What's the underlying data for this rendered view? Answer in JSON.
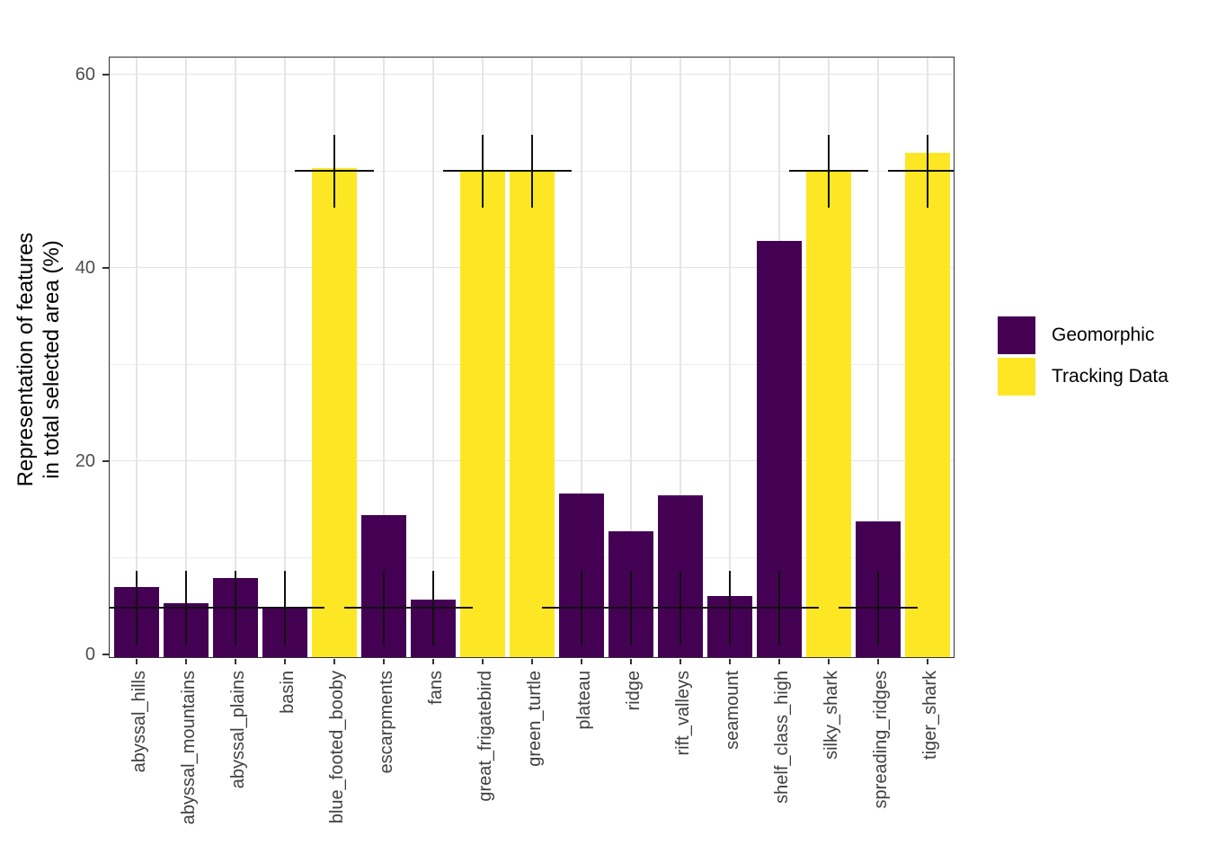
{
  "figure": {
    "y_axis_title_line1": "Representation of features",
    "y_axis_title_line2": "in total selected area (%)"
  },
  "legend": {
    "items": [
      {
        "label": "Geomorphic",
        "color": "#440154"
      },
      {
        "label": "Tracking Data",
        "color": "#FDE725"
      }
    ]
  },
  "chart_data": {
    "type": "bar",
    "title": "",
    "xlabel": "",
    "ylabel": "Representation of features in total selected area (%)",
    "ylim": [
      0,
      62
    ],
    "y_ticks": [
      0,
      20,
      40,
      60
    ],
    "y_tick_labels": [
      "0",
      "20",
      "40",
      "60"
    ],
    "y_major_gridlines": [
      20,
      40,
      60
    ],
    "y_minor_gridlines": [
      10,
      30,
      50
    ],
    "grid": true,
    "legend_position": "right",
    "series": [
      {
        "name": "Geomorphic",
        "color": "#440154"
      },
      {
        "name": "Tracking Data",
        "color": "#FDE725"
      }
    ],
    "bars": [
      {
        "category": "abyssal_hills",
        "series": "Geomorphic",
        "value": 6.9,
        "null_center": 4.8,
        "null_low": 0.9,
        "null_high": 8.6
      },
      {
        "category": "abyssal_mountains",
        "series": "Geomorphic",
        "value": 5.3,
        "null_center": 4.8,
        "null_low": 0.9,
        "null_high": 8.6
      },
      {
        "category": "abyssal_plains",
        "series": "Geomorphic",
        "value": 7.9,
        "null_center": 4.8,
        "null_low": 0.9,
        "null_high": 8.6
      },
      {
        "category": "basin",
        "series": "Geomorphic",
        "value": 4.7,
        "null_center": 4.8,
        "null_low": 0.9,
        "null_high": 8.6
      },
      {
        "category": "blue_footed_booby",
        "series": "Tracking Data",
        "value": 50.3,
        "null_center": 50.0,
        "null_low": 46.2,
        "null_high": 53.7
      },
      {
        "category": "escarpments",
        "series": "Geomorphic",
        "value": 14.4,
        "null_center": 4.8,
        "null_low": 0.9,
        "null_high": 8.6
      },
      {
        "category": "fans",
        "series": "Geomorphic",
        "value": 5.6,
        "null_center": 4.8,
        "null_low": 0.9,
        "null_high": 8.6
      },
      {
        "category": "great_frigatebird",
        "series": "Tracking Data",
        "value": 50.0,
        "null_center": 50.0,
        "null_low": 46.2,
        "null_high": 53.7
      },
      {
        "category": "green_turtle",
        "series": "Tracking Data",
        "value": 50.0,
        "null_center": 50.0,
        "null_low": 46.2,
        "null_high": 53.7
      },
      {
        "category": "plateau",
        "series": "Geomorphic",
        "value": 16.6,
        "null_center": 4.8,
        "null_low": 0.9,
        "null_high": 8.6
      },
      {
        "category": "ridge",
        "series": "Geomorphic",
        "value": 12.7,
        "null_center": 4.8,
        "null_low": 0.9,
        "null_high": 8.6
      },
      {
        "category": "rift_valleys",
        "series": "Geomorphic",
        "value": 16.4,
        "null_center": 4.8,
        "null_low": 0.9,
        "null_high": 8.6
      },
      {
        "category": "seamount",
        "series": "Geomorphic",
        "value": 6.0,
        "null_center": 4.8,
        "null_low": 0.9,
        "null_high": 8.6
      },
      {
        "category": "shelf_class_high",
        "series": "Geomorphic",
        "value": 42.8,
        "null_center": 4.8,
        "null_low": 0.9,
        "null_high": 8.6
      },
      {
        "category": "silky_shark",
        "series": "Tracking Data",
        "value": 50.1,
        "null_center": 50.0,
        "null_low": 46.2,
        "null_high": 53.7
      },
      {
        "category": "spreading_ridges",
        "series": "Geomorphic",
        "value": 13.7,
        "null_center": 4.8,
        "null_low": 0.9,
        "null_high": 8.6
      },
      {
        "category": "tiger_shark",
        "series": "Tracking Data",
        "value": 51.9,
        "null_center": 50.0,
        "null_low": 46.2,
        "null_high": 53.7
      }
    ]
  }
}
